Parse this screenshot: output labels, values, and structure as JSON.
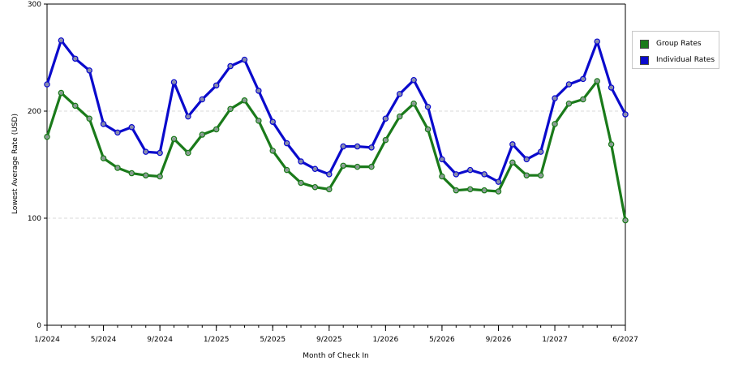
{
  "chart_data": {
    "type": "line",
    "xlabel": "Month of Check In",
    "ylabel": "Lowest Average Rate (USD)",
    "ylim": [
      0,
      300
    ],
    "y_ticks": [
      0,
      100,
      200,
      300
    ],
    "grid": "horizontal dashed",
    "legend_position": "top-right",
    "x_tick_labels": [
      "1/2024",
      "5/2024",
      "9/2024",
      "1/2025",
      "5/2025",
      "9/2025",
      "1/2026",
      "5/2026",
      "9/2026",
      "1/2027",
      "6/2027"
    ],
    "x_tick_index": [
      0,
      4,
      8,
      12,
      16,
      20,
      24,
      28,
      32,
      36,
      41
    ],
    "series": [
      {
        "name": "Group Rates",
        "color": "#1a7a1a",
        "values": [
          176,
          217,
          205,
          193,
          156,
          147,
          142,
          140,
          139,
          174,
          161,
          178,
          183,
          202,
          210,
          191,
          163,
          145,
          133,
          129,
          127,
          149,
          148,
          148,
          173,
          195,
          207,
          183,
          139,
          126,
          127,
          126,
          125,
          152,
          140,
          140,
          188,
          207,
          211,
          228,
          169,
          98
        ]
      },
      {
        "name": "Individual Rates",
        "color": "#0a0acc",
        "values": [
          225,
          266,
          249,
          238,
          188,
          180,
          185,
          162,
          161,
          227,
          195,
          211,
          224,
          242,
          248,
          219,
          190,
          170,
          153,
          146,
          141,
          167,
          167,
          166,
          193,
          216,
          229,
          204,
          155,
          141,
          145,
          141,
          134,
          169,
          155,
          162,
          212,
          225,
          230,
          265,
          222,
          197
        ]
      }
    ]
  }
}
